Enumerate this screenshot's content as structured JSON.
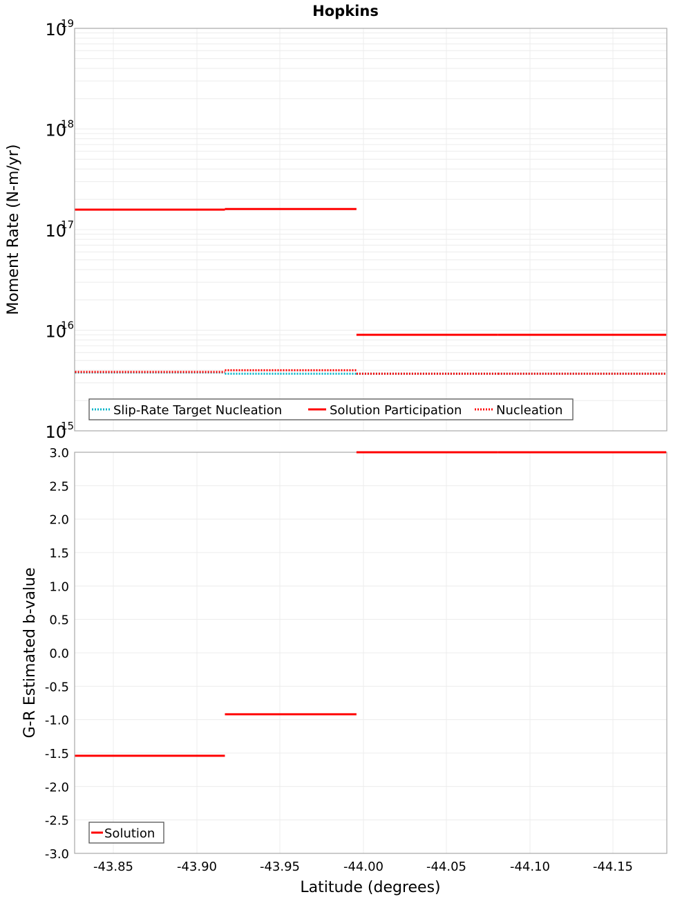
{
  "chart_data": [
    {
      "type": "line",
      "title": "Hopkins",
      "xlabel": "Latitude (degrees)",
      "ylabel": "Moment Rate (N-m/yr)",
      "yscale": "log",
      "ylim": [
        1000000000000000.0,
        1e+19
      ],
      "xlim": [
        -43.827,
        -44.182
      ],
      "grid": true,
      "legend_position": "lower-left",
      "y_tick_labels": [
        {
          "base": "10",
          "exp": "19",
          "value": 1e+19
        },
        {
          "base": "10",
          "exp": "18",
          "value": 1e+18
        },
        {
          "base": "10",
          "exp": "17",
          "value": 1e+17
        },
        {
          "base": "10",
          "exp": "16",
          "value": 1e+16
        },
        {
          "base": "10",
          "exp": "15",
          "value": 1000000000000000.0
        }
      ],
      "segments_x": [
        [
          -43.827,
          -43.917
        ],
        [
          -43.917,
          -43.996
        ],
        [
          -43.996,
          -44.081
        ],
        [
          -44.081,
          -44.182
        ]
      ],
      "series": [
        {
          "name": "Slip-Rate Target Nucleation",
          "style": "dotted",
          "color": "#00b4c8",
          "values": [
            3800000000000000.0,
            3700000000000000.0,
            3700000000000000.0,
            3700000000000000.0
          ]
        },
        {
          "name": "Solution Participation",
          "style": "solid",
          "color": "#ff0000",
          "values": [
            1.58e+17,
            1.6e+17,
            9000000000000000.0,
            9000000000000000.0
          ]
        },
        {
          "name": "Nucleation",
          "style": "dotted",
          "color": "#ff0000",
          "values": [
            3850000000000000.0,
            4000000000000000.0,
            3700000000000000.0,
            3700000000000000.0
          ]
        }
      ]
    },
    {
      "type": "line",
      "title": "",
      "xlabel": "Latitude (degrees)",
      "ylabel": "G-R Estimated b-value",
      "ylim": [
        -3.0,
        3.0
      ],
      "xlim": [
        -43.827,
        -44.182
      ],
      "grid": true,
      "legend_position": "lower-left",
      "y_tick_labels": [
        "3.0",
        "2.5",
        "2.0",
        "1.5",
        "1.0",
        "0.5",
        "0.0",
        "-0.5",
        "-1.0",
        "-1.5",
        "-2.0",
        "-2.5",
        "-3.0"
      ],
      "x_tick_labels": [
        "-43.85",
        "-43.90",
        "-43.95",
        "-44.00",
        "-44.05",
        "-44.10",
        "-44.15"
      ],
      "segments_x": [
        [
          -43.827,
          -43.917
        ],
        [
          -43.917,
          -43.996
        ],
        [
          -43.996,
          -44.081
        ],
        [
          -44.081,
          -44.182
        ]
      ],
      "series": [
        {
          "name": "Solution",
          "style": "solid",
          "color": "#ff0000",
          "values": [
            -1.54,
            -0.92,
            3.0,
            3.0
          ]
        }
      ]
    }
  ],
  "labels": {
    "title": "Hopkins",
    "top_ylabel": "Moment Rate (N-m/yr)",
    "bottom_ylabel": "G-R Estimated b-value",
    "xlabel": "Latitude (degrees)",
    "legend_top": [
      "Slip-Rate Target Nucleation",
      "Solution Participation",
      "Nucleation"
    ],
    "legend_bottom": [
      "Solution"
    ]
  }
}
